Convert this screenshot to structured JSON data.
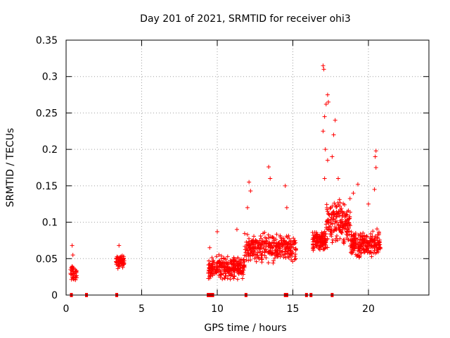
{
  "chart_data": {
    "type": "scatter",
    "title": "Day 201 of 2021, SRMTID for receiver ohi3",
    "xlabel": "GPS time / hours",
    "ylabel": "SRMTID / TECUs",
    "xlim": [
      0,
      24
    ],
    "ylim": [
      0,
      0.35
    ],
    "grid": true,
    "marker": "+",
    "color": "#ff0000",
    "x_ticks": [
      0,
      5,
      10,
      15,
      20
    ],
    "y_ticks": [
      0,
      0.05,
      0.1,
      0.15,
      0.2,
      0.25,
      0.3,
      0.35
    ],
    "x_tick_labels": [
      "0",
      "5",
      "10",
      "15",
      "20"
    ],
    "y_tick_labels": [
      "0",
      "0.05",
      "0.1",
      "0.15",
      "0.2",
      "0.25",
      "0.3",
      "0.35"
    ],
    "clusters": [
      {
        "x_range": [
          0.3,
          0.7
        ],
        "y_center": 0.03,
        "y_spread": 0.015,
        "count": 40
      },
      {
        "x_range": [
          3.3,
          3.9
        ],
        "y_center": 0.045,
        "y_spread": 0.015,
        "count": 60
      },
      {
        "x_range": [
          9.4,
          11.8
        ],
        "y_center": 0.038,
        "y_spread": 0.02,
        "count": 260
      },
      {
        "x_range": [
          11.8,
          15.2
        ],
        "y_center": 0.065,
        "y_spread": 0.025,
        "count": 320
      },
      {
        "x_range": [
          16.3,
          17.2
        ],
        "y_center": 0.075,
        "y_spread": 0.02,
        "count": 120
      },
      {
        "x_range": [
          17.2,
          18.8
        ],
        "y_center": 0.1,
        "y_spread": 0.04,
        "count": 180
      },
      {
        "x_range": [
          18.8,
          20.8
        ],
        "y_center": 0.07,
        "y_spread": 0.025,
        "count": 220
      }
    ],
    "highlights": [
      {
        "x": 0.4,
        "y": 0.068
      },
      {
        "x": 0.45,
        "y": 0.055
      },
      {
        "x": 3.5,
        "y": 0.068
      },
      {
        "x": 9.5,
        "y": 0.065
      },
      {
        "x": 10.0,
        "y": 0.087
      },
      {
        "x": 11.3,
        "y": 0.09
      },
      {
        "x": 12.0,
        "y": 0.12
      },
      {
        "x": 12.1,
        "y": 0.155
      },
      {
        "x": 12.2,
        "y": 0.143
      },
      {
        "x": 13.4,
        "y": 0.176
      },
      {
        "x": 13.5,
        "y": 0.16
      },
      {
        "x": 14.5,
        "y": 0.15
      },
      {
        "x": 14.6,
        "y": 0.12
      },
      {
        "x": 17.0,
        "y": 0.315
      },
      {
        "x": 17.05,
        "y": 0.31
      },
      {
        "x": 17.3,
        "y": 0.275
      },
      {
        "x": 17.35,
        "y": 0.265
      },
      {
        "x": 17.2,
        "y": 0.262
      },
      {
        "x": 17.1,
        "y": 0.245
      },
      {
        "x": 17.0,
        "y": 0.225
      },
      {
        "x": 17.15,
        "y": 0.2
      },
      {
        "x": 17.3,
        "y": 0.185
      },
      {
        "x": 17.8,
        "y": 0.24
      },
      {
        "x": 17.7,
        "y": 0.22
      },
      {
        "x": 17.6,
        "y": 0.19
      },
      {
        "x": 18.0,
        "y": 0.16
      },
      {
        "x": 17.1,
        "y": 0.16
      },
      {
        "x": 20.5,
        "y": 0.198
      },
      {
        "x": 20.45,
        "y": 0.19
      },
      {
        "x": 20.5,
        "y": 0.175
      },
      {
        "x": 20.4,
        "y": 0.145
      },
      {
        "x": 19.3,
        "y": 0.152
      },
      {
        "x": 19.0,
        "y": 0.14
      },
      {
        "x": 20.0,
        "y": 0.125
      },
      {
        "x": 20.7,
        "y": 0.085
      }
    ],
    "baseline_marks_x": [
      0.35,
      1.35,
      3.35,
      9.4,
      9.5,
      9.6,
      9.7,
      11.9,
      14.5,
      14.6,
      15.9,
      16.2,
      17.6
    ]
  }
}
